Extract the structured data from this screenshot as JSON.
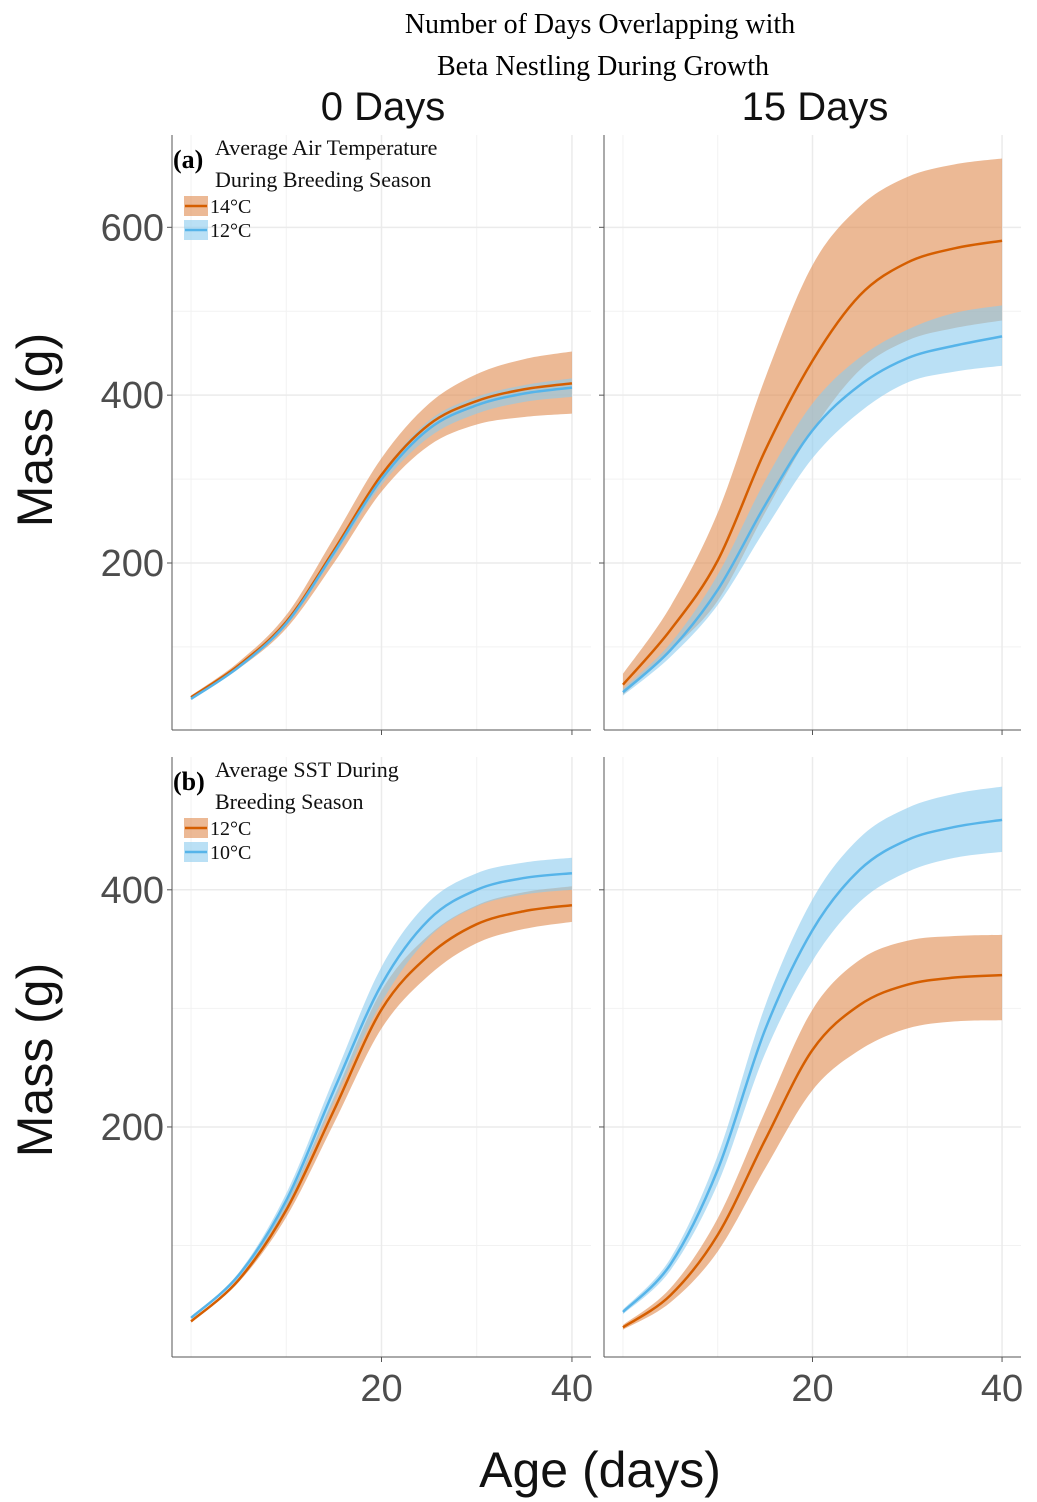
{
  "title": [
    "Number of Days Overlapping with",
    "Beta Nestling During Growth"
  ],
  "column_titles": [
    "0 Days",
    "15 Days"
  ],
  "xlabel": "Age (days)",
  "ylabel": "Mass (g)",
  "chart_data": [
    {
      "type": "line",
      "annotation": "(a)",
      "legend_title": [
        "Average Air Temperature",
        "During Breeding Season"
      ],
      "legend": "top-left",
      "x": [
        0,
        5,
        10,
        15,
        20,
        25,
        30,
        35,
        40
      ],
      "series": [
        {
          "name": "14°C",
          "color": "#d55e00",
          "band_color": "#e08a4f",
          "values": [
            40,
            78,
            130,
            215,
            305,
            365,
            393,
            407,
            414
          ],
          "lower": [
            38,
            74,
            122,
            200,
            285,
            340,
            365,
            374,
            378
          ],
          "upper": [
            42,
            82,
            138,
            230,
            325,
            390,
            425,
            443,
            452
          ]
        },
        {
          "name": "12°C",
          "color": "#56b4e9",
          "band_color": "#8ccbef",
          "values": [
            38,
            76,
            128,
            212,
            300,
            360,
            388,
            402,
            409
          ],
          "lower": [
            37,
            74,
            125,
            207,
            293,
            350,
            378,
            392,
            398
          ],
          "upper": [
            39,
            78,
            131,
            217,
            307,
            370,
            398,
            412,
            420
          ]
        }
      ],
      "xlim": [
        -2,
        42
      ],
      "xticks": [
        20,
        40
      ],
      "xminor": [
        0,
        10,
        30
      ],
      "ylim": [
        1,
        710
      ],
      "yticks": [
        200,
        400,
        600
      ],
      "yminor": [
        100,
        300,
        500
      ],
      "grid": true
    },
    {
      "type": "line",
      "x": [
        0,
        5,
        10,
        15,
        20,
        25,
        30,
        35,
        40
      ],
      "series": [
        {
          "name": "14°C",
          "color": "#d55e00",
          "band_color": "#e08a4f",
          "values": [
            55,
            120,
            203,
            334,
            441,
            519,
            558,
            575,
            584
          ],
          "lower": [
            43,
            95,
            155,
            260,
            358,
            430,
            465,
            480,
            489
          ],
          "upper": [
            68,
            148,
            260,
            420,
            555,
            625,
            660,
            675,
            682
          ]
        },
        {
          "name": "12°C",
          "color": "#56b4e9",
          "band_color": "#8ccbef",
          "values": [
            46,
            96,
            168,
            269,
            358,
            412,
            444,
            459,
            470
          ],
          "lower": [
            42,
            88,
            150,
            240,
            325,
            380,
            415,
            428,
            435
          ],
          "upper": [
            50,
            104,
            186,
            298,
            390,
            445,
            478,
            498,
            507
          ]
        }
      ],
      "xlim": [
        -2,
        42
      ],
      "xticks": [
        20,
        40
      ],
      "xminor": [
        0,
        10,
        30
      ],
      "ylim": [
        1,
        710
      ],
      "yticks": [
        200,
        400,
        600
      ],
      "yminor": [
        100,
        300,
        500
      ],
      "grid": true
    },
    {
      "type": "line",
      "annotation": "(b)",
      "legend_title": [
        "Average SST During",
        "Breeding Season"
      ],
      "legend": "top-left",
      "x": [
        0,
        5,
        10,
        15,
        20,
        25,
        30,
        35,
        40
      ],
      "series": [
        {
          "name": "12°C",
          "color": "#d55e00",
          "band_color": "#e08a4f",
          "values": [
            36,
            71,
            130,
            214,
            299,
            345,
            371,
            382,
            387
          ],
          "lower": [
            35,
            69,
            124,
            203,
            283,
            328,
            355,
            367,
            373
          ],
          "upper": [
            37,
            73,
            136,
            225,
            315,
            362,
            387,
            398,
            403
          ]
        },
        {
          "name": "10°C",
          "color": "#56b4e9",
          "band_color": "#8ccbef",
          "values": [
            39,
            75,
            138,
            231,
            320,
            375,
            400,
            410,
            414
          ],
          "lower": [
            38,
            73,
            132,
            221,
            305,
            360,
            386,
            396,
            400
          ],
          "upper": [
            40,
            77,
            144,
            241,
            335,
            390,
            414,
            423,
            427
          ]
        }
      ],
      "xlim": [
        -2,
        42
      ],
      "xticks": [
        20,
        40
      ],
      "xminor": [
        0,
        10,
        30
      ],
      "ylim": [
        6,
        512
      ],
      "yticks": [
        200,
        400
      ],
      "yminor": [
        100,
        300
      ],
      "grid": true
    },
    {
      "type": "line",
      "x": [
        0,
        5,
        10,
        15,
        20,
        25,
        30,
        35,
        40
      ],
      "series": [
        {
          "name": "12°C",
          "color": "#d55e00",
          "band_color": "#e08a4f",
          "values": [
            31,
            58,
            109,
            189,
            265,
            303,
            320,
            326,
            328
          ],
          "lower": [
            29,
            52,
            95,
            165,
            231,
            265,
            283,
            289,
            290
          ],
          "upper": [
            33,
            64,
            123,
            213,
            299,
            341,
            357,
            361,
            362
          ]
        },
        {
          "name": "10°C",
          "color": "#56b4e9",
          "band_color": "#8ccbef",
          "values": [
            44,
            84,
            164,
            282,
            366,
            417,
            442,
            453,
            459
          ],
          "lower": [
            42,
            79,
            152,
            262,
            340,
            390,
            415,
            427,
            432
          ],
          "upper": [
            46,
            89,
            176,
            302,
            392,
            444,
            469,
            481,
            487
          ]
        }
      ],
      "xlim": [
        -2,
        42
      ],
      "xticks": [
        20,
        40
      ],
      "xminor": [
        0,
        10,
        30
      ],
      "ylim": [
        6,
        512
      ],
      "yticks": [
        200,
        400
      ],
      "yminor": [
        100,
        300
      ],
      "grid": true
    }
  ]
}
